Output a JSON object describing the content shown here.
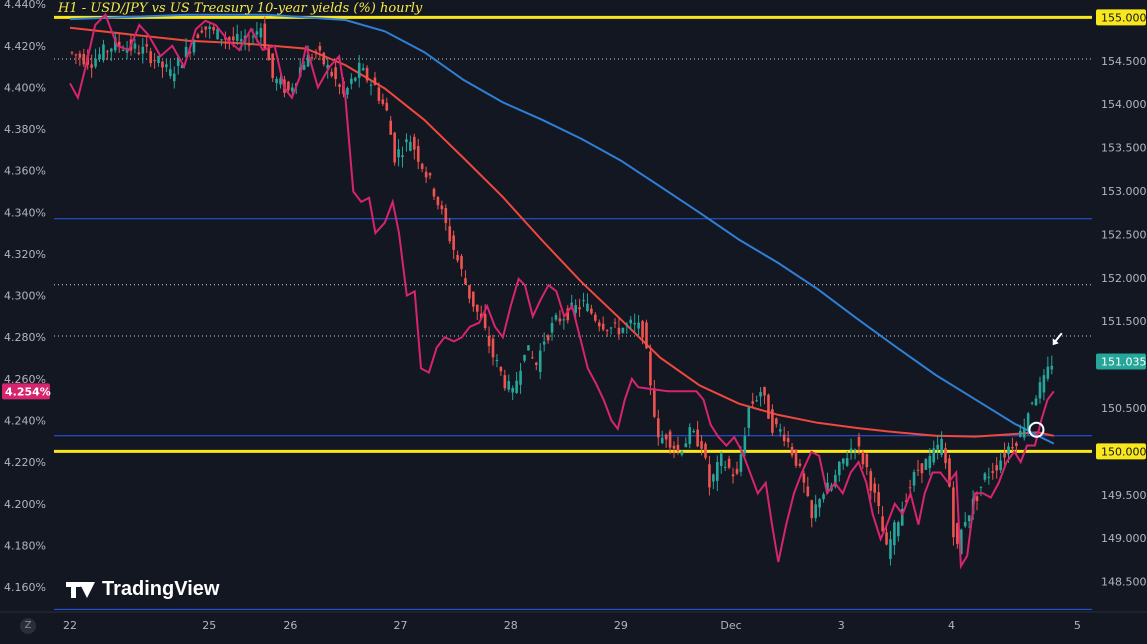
{
  "chart_data": {
    "type": "line",
    "title": "H1 - USD/JPY vs US Treasury 10-year yields (%) hourly",
    "xlabel": "",
    "x_ticks": [
      "22",
      "25",
      "26",
      "27",
      "28",
      "29",
      "Dec",
      "3",
      "4",
      "5"
    ],
    "left_axis": {
      "ticks": [
        "4.440%",
        "4.420%",
        "4.400%",
        "4.380%",
        "4.360%",
        "4.340%",
        "4.320%",
        "4.300%",
        "4.280%",
        "4.260%",
        "4.240%",
        "4.220%",
        "4.200%",
        "4.180%",
        "4.160%"
      ],
      "range": [
        4.148,
        4.442
      ],
      "last_value_label": "4.254%"
    },
    "right_axis": {
      "ticks": [
        "155.000",
        "154.500",
        "154.000",
        "153.500",
        "153.000",
        "152.500",
        "152.000",
        "151.500",
        "151.000",
        "150.500",
        "150.000",
        "149.500",
        "149.000",
        "148.500"
      ],
      "range": [
        148.15,
        155.2
      ],
      "last_value_label": "151.035",
      "highlighted_levels": [
        "155.000",
        "150.000"
      ]
    },
    "grid": false,
    "horizontal_levels": [
      {
        "value": 155.0,
        "style": "yellow-thick"
      },
      {
        "value": 150.0,
        "style": "yellow-thick"
      },
      {
        "value": 154.52,
        "style": "dotted"
      },
      {
        "value": 151.92,
        "style": "dotted"
      },
      {
        "value": 151.33,
        "style": "dotted"
      },
      {
        "value": 152.68,
        "style": "blue-thin"
      },
      {
        "value": 150.18,
        "style": "blue-thin"
      },
      {
        "value": 148.18,
        "style": "blue-thin"
      }
    ],
    "series": [
      {
        "axis": "left",
        "color": "#d6246e",
        "points": [
          [
            0,
            4.402
          ],
          [
            0.1,
            4.395
          ],
          [
            0.2,
            4.41
          ],
          [
            0.32,
            4.43
          ],
          [
            0.45,
            4.435
          ],
          [
            0.6,
            4.42
          ],
          [
            0.75,
            4.418
          ],
          [
            0.88,
            4.43
          ],
          [
            1.0,
            4.425
          ],
          [
            1.15,
            4.415
          ],
          [
            1.3,
            4.42
          ],
          [
            1.45,
            4.41
          ],
          [
            1.6,
            4.428
          ],
          [
            1.72,
            4.432
          ],
          [
            1.85,
            4.43
          ],
          [
            2.0,
            4.423
          ],
          [
            2.15,
            4.418
          ],
          [
            2.3,
            4.428
          ],
          [
            2.45,
            4.418
          ],
          [
            2.6,
            4.42
          ],
          [
            2.72,
            4.4
          ],
          [
            2.82,
            4.395
          ],
          [
            2.92,
            4.405
          ],
          [
            3.0,
            4.42
          ],
          [
            3.15,
            4.4
          ],
          [
            3.3,
            4.41
          ],
          [
            3.42,
            4.415
          ],
          [
            3.5,
            4.395
          ],
          [
            3.6,
            4.35
          ],
          [
            3.7,
            4.345
          ],
          [
            3.8,
            4.347
          ],
          [
            3.88,
            4.33
          ],
          [
            4.0,
            4.335
          ],
          [
            4.1,
            4.345
          ],
          [
            4.18,
            4.33
          ],
          [
            4.28,
            4.3
          ],
          [
            4.38,
            4.302
          ],
          [
            4.46,
            4.265
          ],
          [
            4.56,
            4.263
          ],
          [
            4.66,
            4.275
          ],
          [
            4.76,
            4.28
          ],
          [
            4.88,
            4.278
          ],
          [
            4.98,
            4.28
          ],
          [
            5.08,
            4.285
          ],
          [
            5.2,
            4.287
          ],
          [
            5.3,
            4.295
          ],
          [
            5.4,
            4.285
          ],
          [
            5.5,
            4.28
          ],
          [
            5.6,
            4.295
          ],
          [
            5.7,
            4.308
          ],
          [
            5.78,
            4.305
          ],
          [
            5.88,
            4.29
          ],
          [
            5.98,
            4.298
          ],
          [
            6.08,
            4.305
          ],
          [
            6.18,
            4.302
          ],
          [
            6.28,
            4.29
          ],
          [
            6.38,
            4.295
          ],
          [
            6.48,
            4.28
          ],
          [
            6.58,
            4.265
          ],
          [
            6.68,
            4.258
          ],
          [
            6.78,
            4.25
          ],
          [
            6.88,
            4.24
          ],
          [
            6.96,
            4.236
          ],
          [
            7.05,
            4.25
          ],
          [
            7.14,
            4.26
          ],
          [
            7.22,
            4.256
          ],
          [
            7.4,
            4.255
          ],
          [
            7.6,
            4.254
          ],
          [
            7.8,
            4.254
          ],
          [
            7.96,
            4.254
          ],
          [
            8.05,
            4.25
          ],
          [
            8.14,
            4.238
          ],
          [
            8.24,
            4.232
          ],
          [
            8.34,
            4.228
          ],
          [
            8.44,
            4.232
          ],
          [
            8.54,
            4.225
          ],
          [
            8.64,
            4.215
          ],
          [
            8.74,
            4.205
          ],
          [
            8.84,
            4.21
          ],
          [
            8.92,
            4.19
          ],
          [
            9.0,
            4.172
          ],
          [
            9.1,
            4.19
          ],
          [
            9.2,
            4.205
          ],
          [
            9.3,
            4.215
          ],
          [
            9.42,
            4.225
          ],
          [
            9.52,
            4.223
          ],
          [
            9.62,
            4.205
          ],
          [
            9.72,
            4.21
          ],
          [
            9.82,
            4.205
          ],
          [
            9.92,
            4.215
          ],
          [
            10.02,
            4.22
          ],
          [
            10.12,
            4.21
          ],
          [
            10.2,
            4.195
          ],
          [
            10.3,
            4.183
          ],
          [
            10.38,
            4.19
          ],
          [
            10.48,
            4.2
          ],
          [
            10.58,
            4.195
          ],
          [
            10.68,
            4.205
          ],
          [
            10.78,
            4.19
          ],
          [
            10.86,
            4.205
          ],
          [
            10.96,
            4.215
          ],
          [
            11.06,
            4.215
          ],
          [
            11.16,
            4.21
          ],
          [
            11.26,
            4.215
          ],
          [
            11.32,
            4.17
          ],
          [
            11.4,
            4.175
          ],
          [
            11.5,
            4.205
          ],
          [
            11.6,
            4.205
          ],
          [
            11.7,
            4.203
          ],
          [
            11.8,
            4.21
          ],
          [
            11.9,
            4.22
          ],
          [
            12.0,
            4.225
          ],
          [
            12.08,
            4.22
          ],
          [
            12.16,
            4.228
          ],
          [
            12.26,
            4.228
          ],
          [
            12.34,
            4.24
          ],
          [
            12.42,
            4.25
          ],
          [
            12.5,
            4.254
          ]
        ]
      },
      {
        "axis": "right",
        "type": "candlestick",
        "up_color": "#26a69a",
        "down_color": "#ef5350",
        "waypoints": [
          [
            0,
            154.6
          ],
          [
            0.3,
            154.5
          ],
          [
            0.6,
            154.7
          ],
          [
            1.0,
            154.6
          ],
          [
            1.3,
            154.35
          ],
          [
            1.5,
            154.6
          ],
          [
            1.7,
            154.9
          ],
          [
            1.9,
            154.8
          ],
          [
            2.05,
            154.75
          ],
          [
            2.25,
            154.7
          ],
          [
            2.45,
            154.9
          ],
          [
            2.6,
            154.3
          ],
          [
            2.8,
            154.15
          ],
          [
            3.0,
            154.5
          ],
          [
            3.15,
            154.6
          ],
          [
            3.35,
            154.35
          ],
          [
            3.5,
            154.1
          ],
          [
            3.7,
            154.4
          ],
          [
            3.9,
            154.2
          ],
          [
            4.05,
            153.9
          ],
          [
            4.15,
            153.4
          ],
          [
            4.35,
            153.6
          ],
          [
            4.5,
            153.3
          ],
          [
            4.65,
            153.0
          ],
          [
            4.8,
            152.6
          ],
          [
            4.95,
            152.2
          ],
          [
            5.1,
            151.8
          ],
          [
            5.25,
            151.5
          ],
          [
            5.4,
            151.1
          ],
          [
            5.55,
            150.8
          ],
          [
            5.65,
            150.65
          ],
          [
            5.8,
            151.2
          ],
          [
            5.95,
            151.0
          ],
          [
            6.05,
            151.3
          ],
          [
            6.2,
            151.5
          ],
          [
            6.35,
            151.6
          ],
          [
            6.55,
            151.7
          ],
          [
            6.75,
            151.5
          ],
          [
            6.95,
            151.4
          ],
          [
            7.15,
            151.45
          ],
          [
            7.3,
            151.4
          ],
          [
            7.4,
            150.8
          ],
          [
            7.5,
            150.1
          ],
          [
            7.6,
            150.2
          ],
          [
            7.75,
            150.0
          ],
          [
            7.9,
            150.2
          ],
          [
            8.05,
            150.1
          ],
          [
            8.15,
            149.6
          ],
          [
            8.3,
            149.9
          ],
          [
            8.5,
            149.7
          ],
          [
            8.65,
            150.5
          ],
          [
            8.8,
            150.7
          ],
          [
            8.95,
            150.3
          ],
          [
            9.1,
            150.2
          ],
          [
            9.25,
            149.9
          ],
          [
            9.35,
            149.6
          ],
          [
            9.45,
            149.2
          ],
          [
            9.55,
            149.5
          ],
          [
            9.7,
            149.6
          ],
          [
            9.85,
            149.9
          ],
          [
            10.0,
            150.1
          ],
          [
            10.15,
            149.8
          ],
          [
            10.3,
            149.3
          ],
          [
            10.4,
            148.85
          ],
          [
            10.5,
            149.1
          ],
          [
            10.65,
            149.5
          ],
          [
            10.8,
            149.8
          ],
          [
            10.95,
            149.9
          ],
          [
            11.1,
            150.1
          ],
          [
            11.2,
            149.6
          ],
          [
            11.28,
            148.8
          ],
          [
            11.38,
            149.2
          ],
          [
            11.5,
            149.4
          ],
          [
            11.65,
            149.7
          ],
          [
            11.8,
            149.85
          ],
          [
            11.95,
            150.05
          ],
          [
            12.1,
            150.2
          ],
          [
            12.25,
            150.6
          ],
          [
            12.4,
            150.8
          ],
          [
            12.5,
            151.035
          ]
        ]
      },
      {
        "axis": "right",
        "name": "",
        "color": "#f0483e",
        "points": [
          [
            0,
            154.88
          ],
          [
            1.5,
            154.73
          ],
          [
            2.2,
            154.7
          ],
          [
            3.0,
            154.64
          ],
          [
            3.5,
            154.45
          ],
          [
            4.0,
            154.18
          ],
          [
            4.5,
            153.82
          ],
          [
            5.0,
            153.38
          ],
          [
            5.5,
            152.93
          ],
          [
            6.0,
            152.43
          ],
          [
            6.5,
            151.95
          ],
          [
            7.0,
            151.52
          ],
          [
            7.5,
            151.08
          ],
          [
            8.0,
            150.76
          ],
          [
            8.5,
            150.55
          ],
          [
            9.0,
            150.42
          ],
          [
            9.5,
            150.33
          ],
          [
            10.0,
            150.27
          ],
          [
            10.5,
            150.22
          ],
          [
            11.0,
            150.18
          ],
          [
            11.5,
            150.17
          ],
          [
            12.0,
            150.2
          ],
          [
            12.3,
            150.22
          ],
          [
            12.5,
            150.18
          ]
        ]
      },
      {
        "axis": "right",
        "name": "",
        "color": "#2f7fd6",
        "points": [
          [
            0,
            154.98
          ],
          [
            1.5,
            155.03
          ],
          [
            2.5,
            155.03
          ],
          [
            3.0,
            155.0
          ],
          [
            3.5,
            154.97
          ],
          [
            4.0,
            154.84
          ],
          [
            4.5,
            154.6
          ],
          [
            5.0,
            154.28
          ],
          [
            5.5,
            154.02
          ],
          [
            6.0,
            153.82
          ],
          [
            6.5,
            153.6
          ],
          [
            7.0,
            153.35
          ],
          [
            7.5,
            153.05
          ],
          [
            8.0,
            152.75
          ],
          [
            8.5,
            152.44
          ],
          [
            9.0,
            152.17
          ],
          [
            9.5,
            151.87
          ],
          [
            10.0,
            151.53
          ],
          [
            10.5,
            151.2
          ],
          [
            11.0,
            150.88
          ],
          [
            11.5,
            150.6
          ],
          [
            12.0,
            150.32
          ],
          [
            12.3,
            150.18
          ],
          [
            12.5,
            150.09
          ]
        ]
      }
    ],
    "annotations": [
      {
        "type": "circle",
        "x": 12.28,
        "y_right": 150.25
      },
      {
        "type": "arrow",
        "x": 12.5,
        "y_right": 151.2
      }
    ]
  },
  "watermark": "TradingView",
  "zoom_label": "Z"
}
